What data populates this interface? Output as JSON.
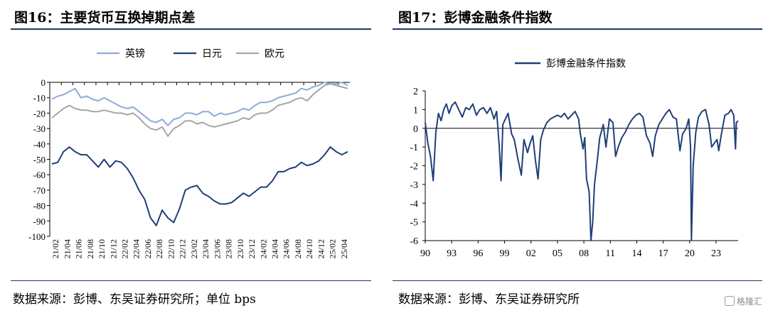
{
  "left": {
    "title": "图16：主要货币互换掉期点差",
    "source": "数据来源：彭博、东吴证券研究所；单位 bps",
    "chart_data": {
      "type": "line",
      "legend_placement": "top-center",
      "grid": false,
      "ylim": [
        -100,
        0
      ],
      "yticks": [
        "0",
        "-10",
        "-20",
        "-30",
        "-40",
        "-50",
        "-60",
        "-70",
        "-80",
        "-90",
        "-100"
      ],
      "ytick_values": [
        0,
        -10,
        -20,
        -30,
        -40,
        -50,
        -60,
        -70,
        -80,
        -90,
        -100
      ],
      "xticks": [
        "21/02",
        "21/04",
        "21/06",
        "21/08",
        "21/10",
        "21/12",
        "22/02",
        "22/04",
        "22/06",
        "22/08",
        "22/10",
        "22/12",
        "23/02",
        "23/04",
        "23/06",
        "23/08",
        "23/10",
        "23/12",
        "24/02",
        "24/04",
        "24/06",
        "24/08",
        "24/10",
        "24/12",
        "25/02",
        "25/04"
      ],
      "x": [
        "21/02",
        "21/03",
        "21/04",
        "21/05",
        "21/06",
        "21/07",
        "21/08",
        "21/09",
        "21/10",
        "21/11",
        "21/12",
        "22/01",
        "22/02",
        "22/03",
        "22/04",
        "22/05",
        "22/06",
        "22/07",
        "22/08",
        "22/09",
        "22/10",
        "22/11",
        "22/12",
        "23/01",
        "23/02",
        "23/03",
        "23/04",
        "23/05",
        "23/06",
        "23/07",
        "23/08",
        "23/09",
        "23/10",
        "23/11",
        "23/12",
        "24/01",
        "24/02",
        "24/03",
        "24/04",
        "24/05",
        "24/06",
        "24/07",
        "24/08",
        "24/09",
        "24/10",
        "24/11",
        "24/12",
        "25/01",
        "25/02",
        "25/03",
        "25/04",
        "25/05"
      ],
      "series": [
        {
          "name": "英镑",
          "color": "#8eaadb",
          "values": [
            -11,
            -9,
            -8,
            -6,
            -4,
            -10,
            -9,
            -11,
            -12,
            -10,
            -12,
            -14,
            -16,
            -17,
            -16,
            -19,
            -22,
            -25,
            -26,
            -24,
            -28,
            -24,
            -23,
            -20,
            -20,
            -21,
            -19,
            -19,
            -22,
            -20,
            -21,
            -20,
            -19,
            -17,
            -18,
            -15,
            -13,
            -13,
            -12,
            -10,
            -9,
            -8,
            -7,
            -4,
            -5,
            -3,
            -2,
            0,
            -1,
            -1,
            0,
            -2
          ]
        },
        {
          "name": "日元",
          "color": "#1f3f78",
          "values": [
            -53,
            -52,
            -45,
            -42,
            -45,
            -47,
            -47,
            -51,
            -55,
            -50,
            -55,
            -51,
            -52,
            -56,
            -62,
            -70,
            -76,
            -88,
            -93,
            -83,
            -88,
            -91,
            -82,
            -70,
            -68,
            -67,
            -72,
            -74,
            -77,
            -79,
            -79,
            -78,
            -75,
            -72,
            -74,
            -71,
            -68,
            -68,
            -64,
            -58,
            -58,
            -56,
            -55,
            -52,
            -54,
            -53,
            -51,
            -47,
            -42,
            -45,
            -47,
            -45
          ]
        },
        {
          "name": "欧元",
          "color": "#a6a6a6",
          "values": [
            -23,
            -20,
            -17,
            -15,
            -17,
            -18,
            -18,
            -19,
            -19,
            -18,
            -19,
            -20,
            -20,
            -21,
            -20,
            -23,
            -27,
            -30,
            -31,
            -29,
            -35,
            -30,
            -28,
            -25,
            -25,
            -27,
            -26,
            -28,
            -29,
            -28,
            -27,
            -26,
            -25,
            -23,
            -24,
            -21,
            -20,
            -20,
            -18,
            -15,
            -14,
            -13,
            -11,
            -10,
            -12,
            -8,
            -5,
            -2,
            -1,
            -2,
            -3,
            -4
          ]
        }
      ]
    }
  },
  "right": {
    "title": "图17：彭博金融条件指数",
    "source": "数据来源：彭博、东吴证券研究所",
    "chart_data": {
      "type": "line",
      "legend_placement": "top-center",
      "grid": false,
      "ylim": [
        -6,
        2
      ],
      "yticks": [
        "2",
        "1",
        "0",
        "-1",
        "-2",
        "-3",
        "-4",
        "-5",
        "-6"
      ],
      "ytick_values": [
        2,
        1,
        0,
        -1,
        -2,
        -3,
        -4,
        -5,
        -6
      ],
      "xticks": [
        "90",
        "93",
        "96",
        "99",
        "02",
        "05",
        "08",
        "11",
        "14",
        "17",
        "20",
        "23"
      ],
      "xtick_years": [
        1990,
        1993,
        1996,
        1999,
        2002,
        2005,
        2008,
        2011,
        2014,
        2017,
        2020,
        2023
      ],
      "xlim": [
        1990,
        2025.5
      ],
      "series": [
        {
          "name": "彭博金融条件指数",
          "color": "#1f3f78",
          "x": [
            1990,
            1990.3,
            1990.6,
            1990.9,
            1991.2,
            1991.5,
            1991.8,
            1992.1,
            1992.4,
            1992.7,
            1993,
            1993.4,
            1993.8,
            1994.2,
            1994.6,
            1995,
            1995.4,
            1995.8,
            1996.2,
            1996.6,
            1997,
            1997.4,
            1997.8,
            1998.1,
            1998.4,
            1998.6,
            1998.8,
            1999.1,
            1999.4,
            1999.8,
            2000.1,
            2000.5,
            2000.9,
            2001.2,
            2001.6,
            2001.9,
            2002.2,
            2002.5,
            2002.8,
            2003.1,
            2003.4,
            2003.8,
            2004.2,
            2004.6,
            2005,
            2005.4,
            2005.8,
            2006.2,
            2006.6,
            2007,
            2007.4,
            2007.6,
            2007.9,
            2008.1,
            2008.3,
            2008.6,
            2008.8,
            2009,
            2009.2,
            2009.5,
            2009.8,
            2010.2,
            2010.5,
            2010.9,
            2011.3,
            2011.6,
            2011.9,
            2012.3,
            2012.7,
            2013.1,
            2013.5,
            2013.9,
            2014.3,
            2014.7,
            2015.1,
            2015.5,
            2015.8,
            2016.1,
            2016.5,
            2016.9,
            2017.3,
            2017.7,
            2018.1,
            2018.5,
            2018.9,
            2019.2,
            2019.6,
            2019.9,
            2020.1,
            2020.2,
            2020.4,
            2020.7,
            2021,
            2021.4,
            2021.8,
            2022.2,
            2022.5,
            2022.8,
            2023.1,
            2023.3,
            2023.6,
            2024,
            2024.4,
            2024.7,
            2025,
            2025.2,
            2025.3,
            2025.5
          ],
          "values": [
            0.3,
            -0.8,
            -1.5,
            -2.8,
            -0.2,
            0.8,
            0.4,
            1.0,
            1.3,
            0.8,
            1.2,
            1.4,
            1.0,
            0.6,
            1.1,
            1.0,
            1.3,
            0.7,
            1.0,
            1.1,
            0.8,
            1.1,
            0.5,
            0.9,
            -1.0,
            -2.8,
            0.2,
            0.5,
            0.8,
            -0.3,
            -0.6,
            -1.6,
            -2.5,
            -0.6,
            -1.3,
            -0.8,
            -0.4,
            -1.7,
            -2.7,
            -0.6,
            -0.1,
            0.3,
            0.5,
            0.6,
            0.7,
            0.6,
            0.8,
            0.5,
            0.7,
            0.9,
            0.5,
            -0.3,
            -1.1,
            -0.5,
            -2.7,
            -3.4,
            -6.0,
            -5.0,
            -3.0,
            -1.8,
            -0.5,
            0.2,
            -1.0,
            0.5,
            0.3,
            -1.5,
            -1.0,
            -0.5,
            -0.2,
            0.2,
            0.5,
            0.7,
            0.8,
            0.6,
            -0.4,
            -0.8,
            -1.5,
            -0.4,
            0.2,
            0.5,
            0.8,
            1.0,
            0.6,
            0.5,
            -1.2,
            -0.3,
            0.0,
            0.5,
            -1.0,
            -6.0,
            -2.0,
            -0.2,
            0.6,
            0.9,
            1.0,
            0.2,
            -1.0,
            -0.8,
            -0.6,
            -1.2,
            -0.3,
            0.7,
            0.8,
            1.0,
            0.7,
            -1.1,
            0.3,
            0.4
          ]
        }
      ]
    }
  },
  "watermark": {
    "text": "格隆汇"
  }
}
